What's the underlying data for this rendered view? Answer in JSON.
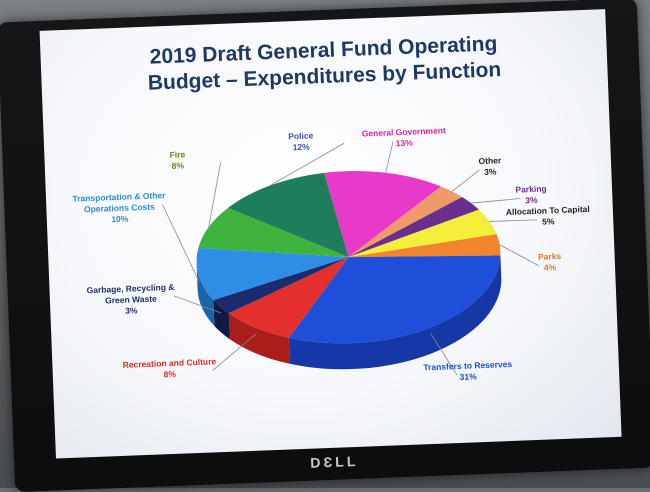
{
  "monitor": {
    "brand": "DƐLL"
  },
  "chart_data": {
    "type": "pie",
    "title_line1": "2019 Draft General Fund Operating",
    "title_line2": "Budget – Expenditures by Function",
    "slices": [
      {
        "key": "general-government",
        "label": "General Government",
        "pct_label": "13%",
        "value": 13,
        "color": "#e83ac9",
        "side": "#9c1f86",
        "labelColor": "#e0209f"
      },
      {
        "key": "other",
        "label": "Other",
        "pct_label": "3%",
        "value": 3,
        "color": "#f09a6a",
        "side": "#b9683b",
        "labelColor": "#1f1f1f"
      },
      {
        "key": "parking",
        "label": "Parking",
        "pct_label": "3%",
        "value": 3,
        "color": "#6a2e8f",
        "side": "#3e1858",
        "labelColor": "#6b2f99"
      },
      {
        "key": "allocation-to-capital",
        "label": "Allocation To Capital",
        "pct_label": "5%",
        "value": 5,
        "color": "#f2ee3a",
        "side": "#b3ad14",
        "labelColor": "#1f1f1f"
      },
      {
        "key": "parks",
        "label": "Parks",
        "pct_label": "4%",
        "value": 4,
        "color": "#f0852e",
        "side": "#b45a12",
        "labelColor": "#e8791c"
      },
      {
        "key": "transfers-to-reserves",
        "label": "Transfers to Reserves",
        "pct_label": "31%",
        "value": 31,
        "color": "#1f4fd9",
        "side": "#1538a6",
        "labelColor": "#1a4ed8"
      },
      {
        "key": "recreation-and-culture",
        "label": "Recreation and Culture",
        "pct_label": "8%",
        "value": 8,
        "color": "#e3302c",
        "side": "#a91d1a",
        "labelColor": "#e02a22"
      },
      {
        "key": "garbage-recycling",
        "label": "Garbage, Recycling &\nGreen Waste",
        "pct_label": "3%",
        "value": 3,
        "color": "#1b2b6e",
        "side": "#0f1a47",
        "labelColor": "#1f2f6a"
      },
      {
        "key": "transportation",
        "label": "Transportation & Other\nOperations Costs",
        "pct_label": "10%",
        "value": 10,
        "color": "#2e8ee6",
        "side": "#1d63a8",
        "labelColor": "#2b8ad6"
      },
      {
        "key": "fire",
        "label": "Fire",
        "pct_label": "8%",
        "value": 8,
        "color": "#3fb33d",
        "side": "#27802a",
        "labelColor": "#5b8a1c"
      },
      {
        "key": "police",
        "label": "Police",
        "pct_label": "12%",
        "value": 12,
        "color": "#1e7d5a",
        "side": "#11533a",
        "labelColor": "#3a4fb8"
      }
    ]
  }
}
